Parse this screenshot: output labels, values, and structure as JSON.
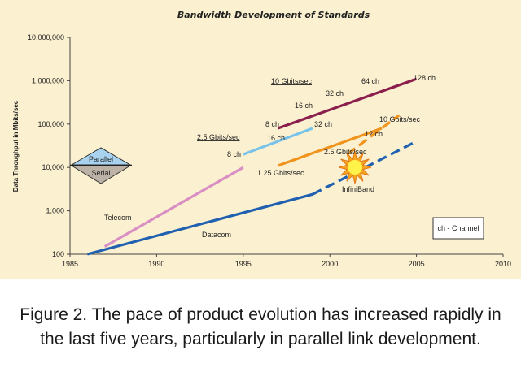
{
  "chart_data": {
    "type": "line",
    "title": "Bandwidth Development of Standards",
    "ylabel": "Data Throughput in Mbits/sec",
    "xlabel": "",
    "xlim": [
      1985,
      2010
    ],
    "ylim": [
      100,
      10000000
    ],
    "yscale": "log",
    "grid": false,
    "x_ticks": [
      "1985",
      "1990",
      "1995",
      "2000",
      "2005",
      "2010"
    ],
    "y_ticks": [
      "100",
      "1,000",
      "10,000",
      "100,000",
      "1,000,000",
      "10,000,000"
    ],
    "series": [
      {
        "name": "Telecom",
        "color": "#d98fc4",
        "points": [
          [
            1987,
            150
          ],
          [
            1995,
            10000
          ]
        ]
      },
      {
        "name": "Datacom",
        "color": "#2060b0",
        "points": [
          [
            1986,
            100
          ],
          [
            1999,
            2400
          ]
        ]
      },
      {
        "name": "InfiniBand",
        "color": "#2060b0",
        "dashed": true,
        "points": [
          [
            1999,
            2400
          ],
          [
            2005,
            40000
          ]
        ]
      },
      {
        "name": "1.25 Gbits/sec",
        "color": "#f0941e",
        "points": [
          [
            1997,
            11000
          ],
          [
            2003,
            80000
          ]
        ]
      },
      {
        "name": "2.5 Gbits/sec",
        "color": "#79c3ea",
        "points": [
          [
            1995,
            20000
          ],
          [
            1999,
            80000
          ]
        ]
      },
      {
        "name": "10 Gbits/sec",
        "color": "#8a1f4e",
        "points": [
          [
            1997,
            80000
          ],
          [
            2005,
            1100000
          ]
        ]
      },
      {
        "name": "10 Gbits/sec",
        "color": "#f0941e",
        "dashed": true,
        "points": [
          [
            2001,
            20000
          ],
          [
            2004,
            160000
          ]
        ]
      }
    ],
    "annotations": {
      "ch128": "128 ch",
      "ch64": "64 ch",
      "ch32a": "32 ch",
      "ch16a": "16 ch",
      "ch8a": "8 ch",
      "ch32b": "32 ch",
      "ch16b": "16 ch",
      "ch8b": "8 ch",
      "ch12": "12 ch",
      "gb10a": "10 Gbits/sec",
      "gb10b": "10 Gbits/sec",
      "gb25a": "2.5 Gbits/sec",
      "gb25b": "2.5 Gbits/sec",
      "gb125": "1.25 Gbits/sec",
      "infiniband": "InfiniBand",
      "telecom": "Telecom",
      "datacom": "Datacom",
      "legend_channel": "ch - Channel"
    },
    "legend": {
      "parallel": "Parallel",
      "serial": "Serial"
    }
  },
  "caption": "Figure 2. The pace of product evolution has increased rapidly in the last five years, particularly in parallel link development."
}
